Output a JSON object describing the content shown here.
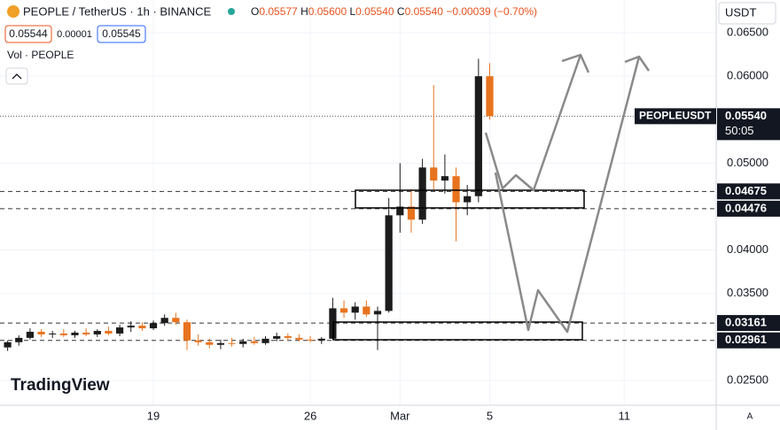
{
  "header": {
    "symbol": "PEOPLE / TetherUS · 1h · BINANCE",
    "ohlc": [
      {
        "key": "O",
        "value": "0.05577"
      },
      {
        "key": "H",
        "value": "0.05600"
      },
      {
        "key": "L",
        "value": "0.05540"
      },
      {
        "key": "C",
        "value": "0.05540"
      }
    ],
    "change": "−0.00039 (−0.70%)",
    "bid": "0.05544",
    "spread": "0.00001",
    "ask": "0.05545",
    "volume_label": "Vol · PEOPLE",
    "currency": "USDT",
    "logo": "TradingView",
    "auto": "A"
  },
  "chart_data": {
    "type": "candlestick",
    "x": [
      12.5,
      13,
      13.5,
      14,
      14.5,
      15,
      15.5,
      16,
      16.5,
      17,
      17.5,
      18,
      18.5,
      19,
      19.5,
      20,
      20.5,
      21,
      21.5,
      22,
      22.5,
      23,
      23.5,
      24,
      24.5,
      25,
      25.5,
      26,
      26.5,
      27,
      27.5,
      28,
      28.5,
      29,
      29.5,
      30,
      30.5,
      31,
      31.5,
      32,
      32.5,
      33,
      33.5,
      34
    ],
    "open": [
      0.0288,
      0.0294,
      0.0299,
      0.0306,
      0.0303,
      0.0304,
      0.0302,
      0.0305,
      0.0303,
      0.0307,
      0.0304,
      0.0311,
      0.0313,
      0.031,
      0.0316,
      0.0322,
      0.0317,
      0.0296,
      0.0294,
      0.0291,
      0.0293,
      0.0292,
      0.0295,
      0.0293,
      0.0298,
      0.0301,
      0.0299,
      0.0297,
      0.0296,
      0.0298,
      0.0333,
      0.0328,
      0.0335,
      0.0326,
      0.033,
      0.044,
      0.045,
      0.0435,
      0.0495,
      0.048,
      0.0485,
      0.0455,
      0.0462,
      0.06
    ],
    "high": [
      0.0296,
      0.0302,
      0.031,
      0.0309,
      0.0307,
      0.0309,
      0.0307,
      0.031,
      0.0309,
      0.0312,
      0.0314,
      0.0318,
      0.0317,
      0.0319,
      0.0326,
      0.0328,
      0.032,
      0.0303,
      0.0298,
      0.0297,
      0.0299,
      0.0298,
      0.03,
      0.0301,
      0.0305,
      0.0304,
      0.0303,
      0.0301,
      0.03,
      0.0345,
      0.0342,
      0.034,
      0.0342,
      0.0335,
      0.046,
      0.05,
      0.047,
      0.0505,
      0.059,
      0.051,
      0.0495,
      0.0475,
      0.062,
      0.0615
    ],
    "low": [
      0.0284,
      0.029,
      0.0297,
      0.03,
      0.0299,
      0.03,
      0.0299,
      0.0301,
      0.03,
      0.0302,
      0.0301,
      0.0306,
      0.0307,
      0.0308,
      0.0313,
      0.0314,
      0.0285,
      0.029,
      0.0287,
      0.0286,
      0.0289,
      0.0288,
      0.0291,
      0.0291,
      0.0295,
      0.0296,
      0.0295,
      0.0294,
      0.0292,
      0.0297,
      0.0322,
      0.032,
      0.0323,
      0.0285,
      0.0328,
      0.042,
      0.042,
      0.043,
      0.047,
      0.0465,
      0.041,
      0.044,
      0.0455,
      0.055
    ],
    "close": [
      0.0294,
      0.0299,
      0.0306,
      0.0303,
      0.0304,
      0.0302,
      0.0305,
      0.0303,
      0.0307,
      0.0304,
      0.0311,
      0.0313,
      0.031,
      0.0316,
      0.0322,
      0.0317,
      0.0296,
      0.0294,
      0.0291,
      0.0293,
      0.0292,
      0.0295,
      0.0293,
      0.0298,
      0.0301,
      0.0299,
      0.0297,
      0.0296,
      0.0298,
      0.0333,
      0.0328,
      0.0335,
      0.0326,
      0.033,
      0.044,
      0.045,
      0.0435,
      0.0495,
      0.048,
      0.0485,
      0.0455,
      0.0462,
      0.06,
      0.0554
    ],
    "up_color": "#1c1c1c",
    "down_color": "#e8731e",
    "xlim": [
      12.16,
      44.1
    ],
    "xticks": [
      19,
      26,
      {
        "value": 30,
        "label": "Mar"
      },
      {
        "value": 34,
        "label": "5"
      },
      {
        "value": 40,
        "label": "11"
      }
    ],
    "ylim": [
      0.02215,
      0.06877
    ],
    "yticks": [
      {
        "value": 0.065,
        "label": "0.06500"
      },
      {
        "value": 0.06,
        "label": "0.06000"
      },
      {
        "value": 0.05,
        "label": "0.05000"
      },
      {
        "value": 0.04,
        "label": "0.04000"
      },
      {
        "value": 0.035,
        "label": "0.03500"
      },
      {
        "value": 0.025,
        "label": "0.02500"
      }
    ],
    "grid": true,
    "levels": [
      0.04675,
      0.04476,
      0.03161,
      0.02961
    ],
    "last_price": {
      "name": "PEOPLEUSDT",
      "value": 0.0554,
      "label": "0.05540",
      "countdown": "50:05"
    }
  }
}
